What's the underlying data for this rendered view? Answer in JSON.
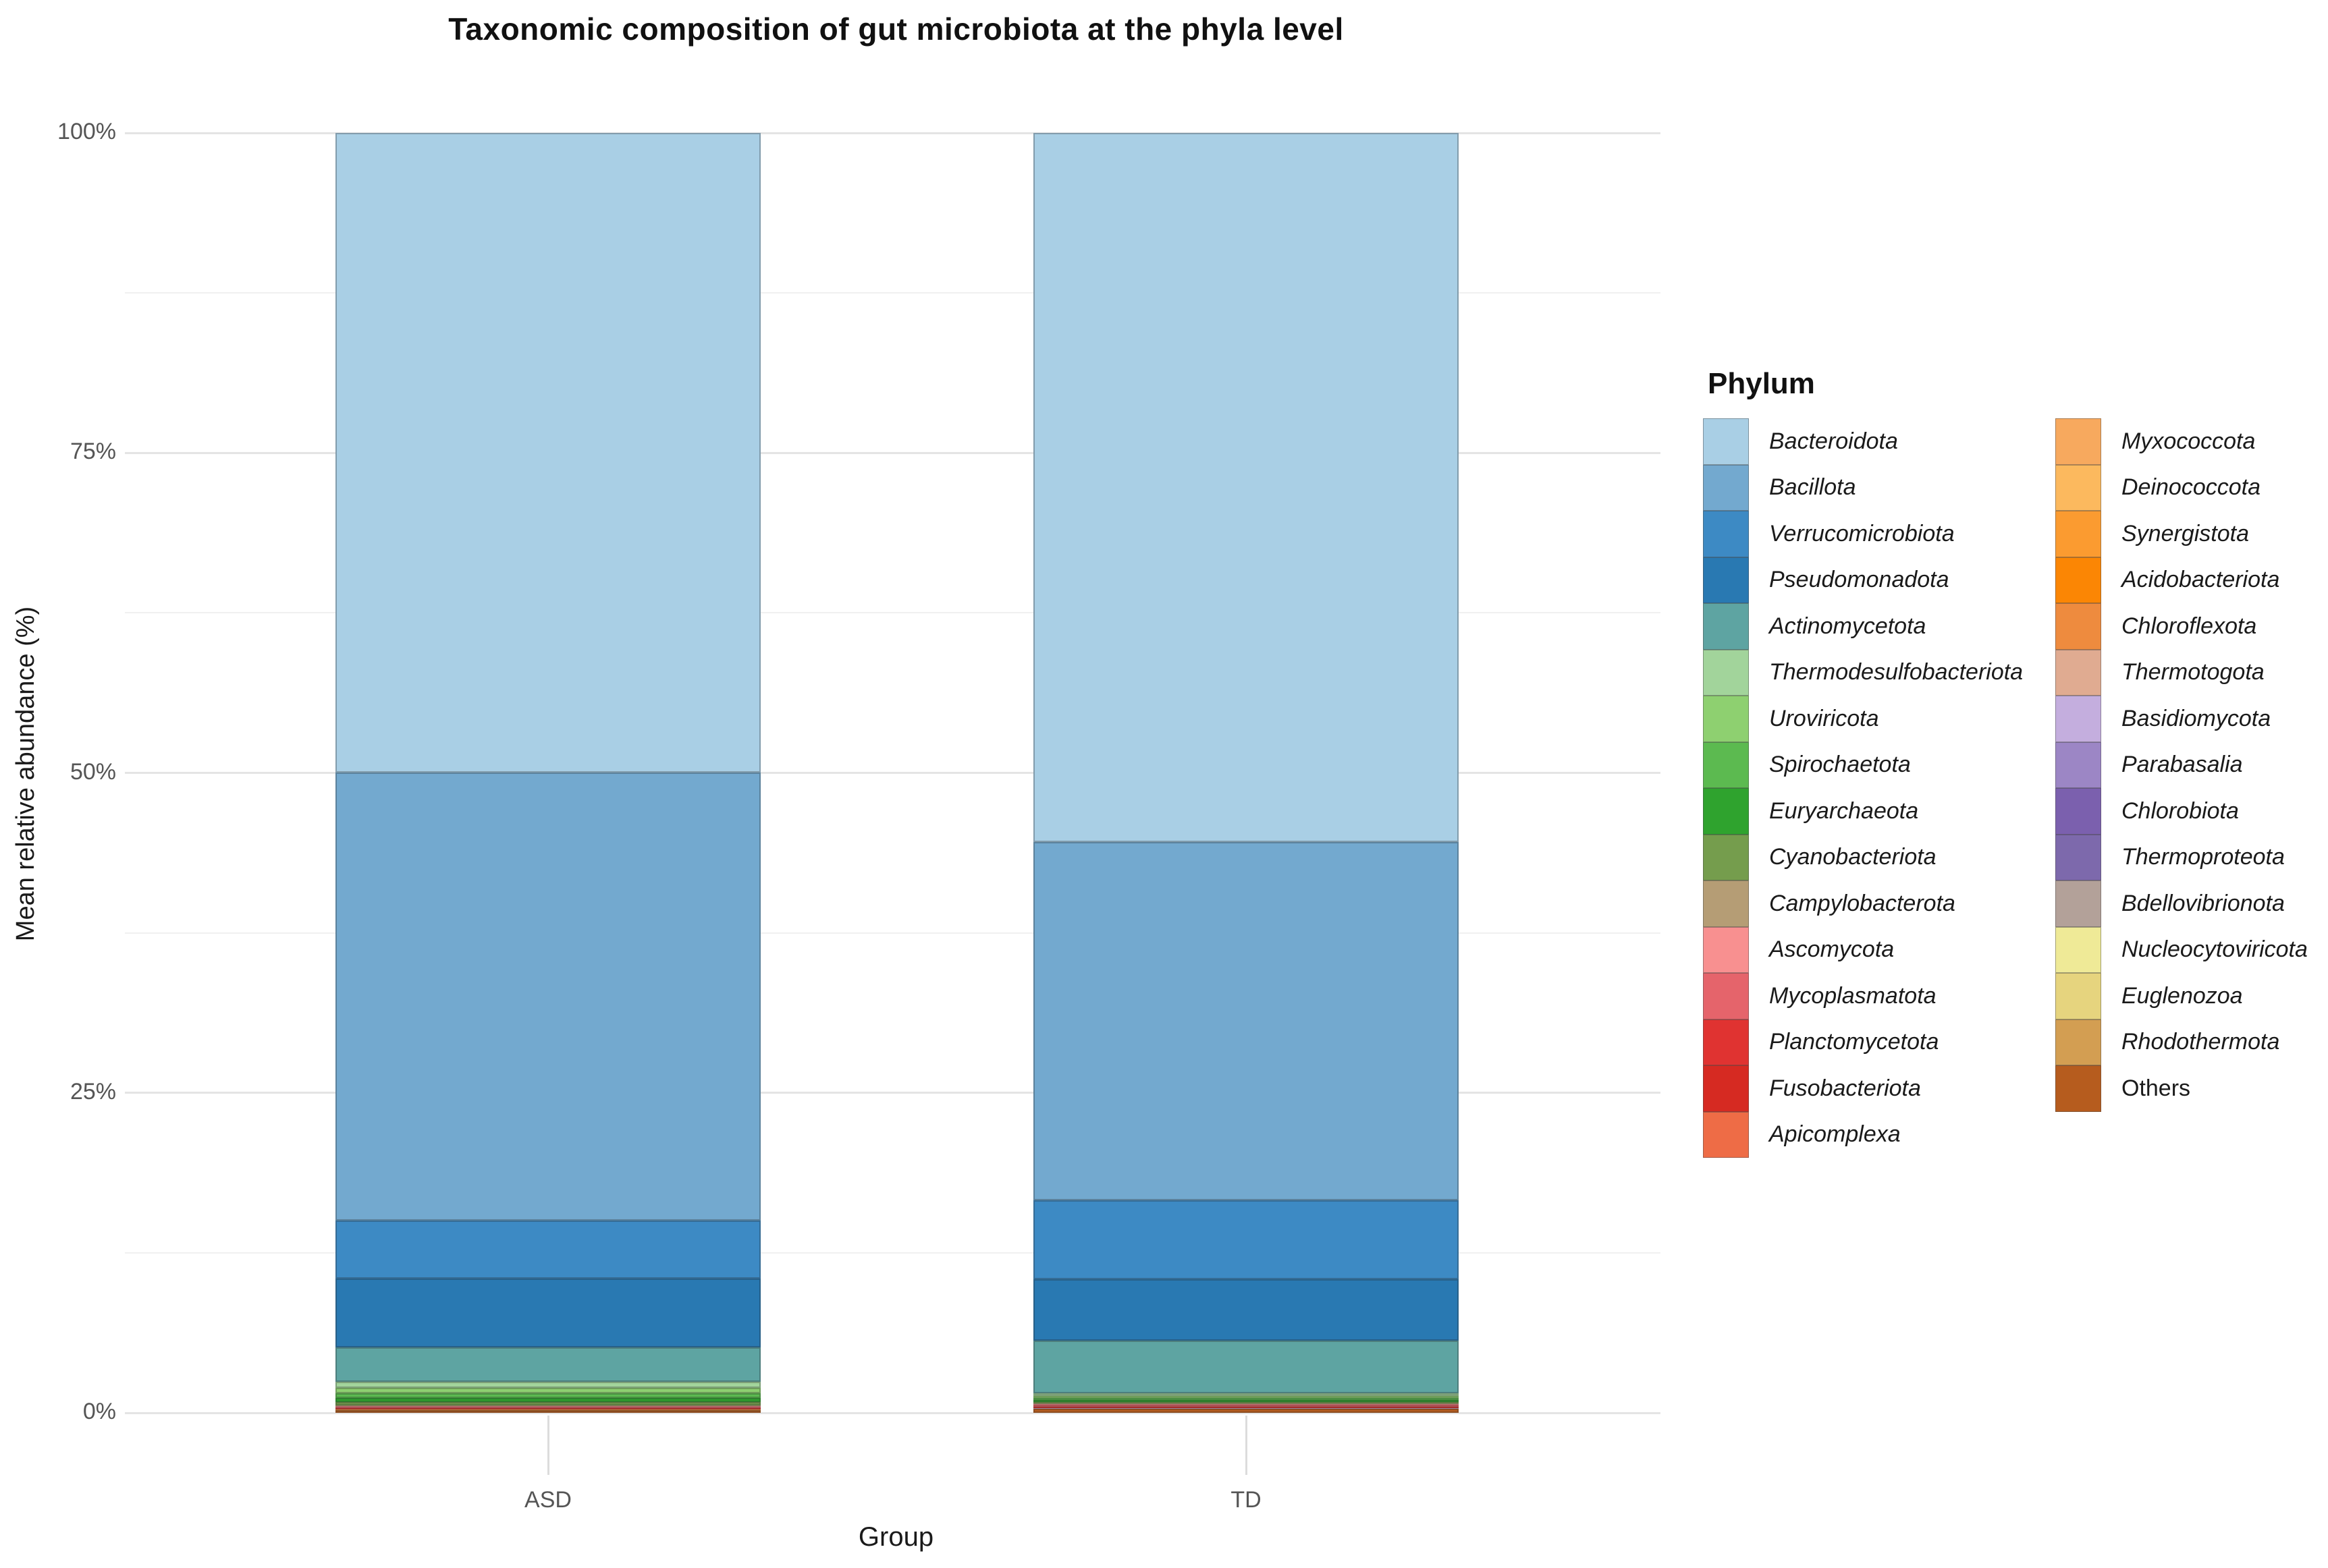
{
  "title": "Taxonomic composition of gut microbiota at the phyla level",
  "chart_data": {
    "type": "bar",
    "subtype": "stacked-100-percent",
    "title": "Taxonomic composition of gut microbiota at the phyla level",
    "xlabel": "Group",
    "ylabel": "Mean relative abundance (%)",
    "categories": [
      "ASD",
      "TD"
    ],
    "ylim": [
      0,
      100
    ],
    "grid": "horizontal-only",
    "y_major_ticks": [
      {
        "pct": 0,
        "label": "0%"
      },
      {
        "pct": 25,
        "label": "25%"
      },
      {
        "pct": 50,
        "label": "50%"
      },
      {
        "pct": 75,
        "label": "75%"
      },
      {
        "pct": 100,
        "label": "100%"
      }
    ],
    "y_minor_ticks": [
      12.5,
      37.5,
      62.5,
      87.5
    ],
    "legend_title": "Phylum",
    "legend_position": "right",
    "legend_col_split": 16,
    "stacking_order": "legend order, top of bar to bottom of bar",
    "series": [
      {
        "name": "Bacteroidota",
        "color": "#a9cfe5",
        "italic": true,
        "values": [
          50.0,
          55.4
        ]
      },
      {
        "name": "Bacillota",
        "color": "#73a9cf",
        "italic": true,
        "values": [
          35.0,
          28.0
        ]
      },
      {
        "name": "Verrucomicrobiota",
        "color": "#3d8ac4",
        "italic": true,
        "values": [
          4.5,
          6.2
        ]
      },
      {
        "name": "Pseudomonadota",
        "color": "#2979b2",
        "italic": true,
        "values": [
          5.4,
          4.8
        ]
      },
      {
        "name": "Actinomycetota",
        "color": "#5ea4a2",
        "italic": true,
        "values": [
          2.7,
          4.1
        ]
      },
      {
        "name": "Thermodesulfobacteriota",
        "color": "#a2d49b",
        "italic": true,
        "values": [
          0.45,
          0.2
        ]
      },
      {
        "name": "Uroviricota",
        "color": "#8ed070",
        "italic": true,
        "values": [
          0.42,
          0.18
        ]
      },
      {
        "name": "Spirochaetota",
        "color": "#5cba50",
        "italic": true,
        "values": [
          0.38,
          0.16
        ]
      },
      {
        "name": "Euryarchaeota",
        "color": "#2fa32e",
        "italic": true,
        "values": [
          0.34,
          0.14
        ]
      },
      {
        "name": "Cyanobacteriota",
        "color": "#759d4d",
        "italic": true,
        "values": [
          0.25,
          0.12
        ]
      },
      {
        "name": "Campylobacterota",
        "color": "#b59d75",
        "italic": true,
        "values": [
          0.07,
          0.06
        ]
      },
      {
        "name": "Ascomycota",
        "color": "#f89090",
        "italic": true,
        "values": [
          0.05,
          0.06
        ]
      },
      {
        "name": "Mycoplasmatota",
        "color": "#e5646b",
        "italic": true,
        "values": [
          0.09,
          0.12
        ]
      },
      {
        "name": "Planctomycetota",
        "color": "#e03331",
        "italic": true,
        "values": [
          0.05,
          0.05
        ]
      },
      {
        "name": "Fusobacteriota",
        "color": "#d62a22",
        "italic": true,
        "values": [
          0.05,
          0.05
        ]
      },
      {
        "name": "Apicomplexa",
        "color": "#ee6c46",
        "italic": true,
        "values": [
          0.03,
          0.03
        ]
      },
      {
        "name": "Myxococcota",
        "color": "#f7a95e",
        "italic": true,
        "values": [
          0.004,
          0.004
        ]
      },
      {
        "name": "Deinococcota",
        "color": "#fcb95e",
        "italic": true,
        "values": [
          0.004,
          0.004
        ]
      },
      {
        "name": "Synergistota",
        "color": "#fb9b30",
        "italic": true,
        "values": [
          0.004,
          0.004
        ]
      },
      {
        "name": "Acidobacteriota",
        "color": "#fb8604",
        "italic": true,
        "values": [
          0.004,
          0.004
        ]
      },
      {
        "name": "Chloroflexota",
        "color": "#ee8b3e",
        "italic": true,
        "values": [
          0.004,
          0.004
        ]
      },
      {
        "name": "Thermotogota",
        "color": "#e0ab91",
        "italic": true,
        "values": [
          0.004,
          0.004
        ]
      },
      {
        "name": "Basidiomycota",
        "color": "#c4aede",
        "italic": true,
        "values": [
          0.004,
          0.004
        ]
      },
      {
        "name": "Parabasalia",
        "color": "#9c86c5",
        "italic": true,
        "values": [
          0.004,
          0.004
        ]
      },
      {
        "name": "Chlorobiota",
        "color": "#7b60ae",
        "italic": true,
        "values": [
          0.004,
          0.004
        ]
      },
      {
        "name": "Thermoproteota",
        "color": "#7d69ac",
        "italic": true,
        "values": [
          0.004,
          0.004
        ]
      },
      {
        "name": "Bdellovibrionota",
        "color": "#b3a199",
        "italic": true,
        "values": [
          0.004,
          0.004
        ]
      },
      {
        "name": "Nucleocytoviricota",
        "color": "#efea97",
        "italic": true,
        "values": [
          0.004,
          0.004
        ]
      },
      {
        "name": "Euglenozoa",
        "color": "#e6d47e",
        "italic": true,
        "values": [
          0.004,
          0.004
        ]
      },
      {
        "name": "Rhodothermota",
        "color": "#d39e52",
        "italic": true,
        "values": [
          0.004,
          0.004
        ]
      },
      {
        "name": "Others",
        "color": "#b65c1e",
        "italic": false,
        "values": [
          0.18,
          0.3
        ]
      }
    ]
  },
  "layout_text": {
    "x_tick_labels": [
      "ASD",
      "TD"
    ]
  }
}
